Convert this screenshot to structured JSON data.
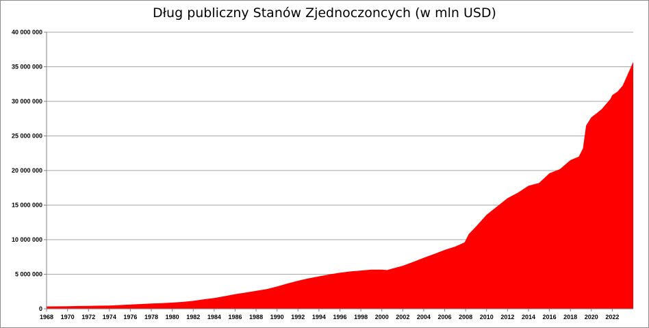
{
  "chart_data": {
    "type": "area",
    "title": "Dług publiczny Stanów Zjednoczoncych (w mln USD)",
    "xlabel": "",
    "ylabel": "",
    "xlim": [
      1968,
      2024
    ],
    "ylim": [
      0,
      40000000
    ],
    "grid": true,
    "legend": "none",
    "fill_color": "#ff0000",
    "grid_color": "#a6a6a6",
    "y_ticks": [
      0,
      5000000,
      10000000,
      15000000,
      20000000,
      25000000,
      30000000,
      35000000,
      40000000
    ],
    "y_tick_labels": [
      "0",
      "5 000 000",
      "10 000 000",
      "15 000 000",
      "20 000 000",
      "25 000 000",
      "30 000 000",
      "35 000 000",
      "40 000 000"
    ],
    "x_ticks": [
      1968,
      1970,
      1972,
      1974,
      1976,
      1978,
      1980,
      1982,
      1984,
      1986,
      1988,
      1990,
      1992,
      1994,
      1996,
      1998,
      2000,
      2002,
      2004,
      2006,
      2008,
      2010,
      2012,
      2014,
      2016,
      2018,
      2020,
      2022
    ],
    "x_tick_labels": [
      "1968",
      "1970",
      "1972",
      "1974",
      "1976",
      "1978",
      "1980",
      "1982",
      "1984",
      "1986",
      "1988",
      "1990",
      "1992",
      "1994",
      "1996",
      "1998",
      "2000",
      "2002",
      "2004",
      "2006",
      "2008",
      "2010",
      "2012",
      "2014",
      "2016",
      "2018",
      "2020",
      "2022"
    ],
    "x": [
      1968,
      1969,
      1970,
      1971,
      1972,
      1973,
      1974,
      1975,
      1976,
      1977,
      1978,
      1979,
      1980,
      1981,
      1982,
      1983,
      1984,
      1985,
      1986,
      1987,
      1988,
      1989,
      1990,
      1991,
      1992,
      1993,
      1994,
      1995,
      1996,
      1997,
      1998,
      1999,
      2000,
      2000.5,
      2001,
      2002,
      2003,
      2004,
      2005,
      2006,
      2007,
      2007.9,
      2008.3,
      2009,
      2010,
      2011,
      2012,
      2013,
      2014,
      2015,
      2016,
      2017,
      2018,
      2018.8,
      2019.2,
      2019.5,
      2020,
      2020.6,
      2021,
      2021.8,
      2022,
      2022.5,
      2023,
      2023.5,
      2024
    ],
    "values": [
      350000,
      360000,
      380000,
      410000,
      430000,
      460000,
      480000,
      540000,
      620000,
      690000,
      760000,
      820000,
      900000,
      1000000,
      1150000,
      1380000,
      1560000,
      1830000,
      2120000,
      2350000,
      2600000,
      2850000,
      3230000,
      3660000,
      4060000,
      4410000,
      4690000,
      4970000,
      5220000,
      5410000,
      5530000,
      5660000,
      5670000,
      5600000,
      5810000,
      6230000,
      6780000,
      7380000,
      7930000,
      8510000,
      9000000,
      9600000,
      10800000,
      11900000,
      13600000,
      14800000,
      16000000,
      16800000,
      17800000,
      18200000,
      19600000,
      20200000,
      21500000,
      22000000,
      23200000,
      26500000,
      27700000,
      28400000,
      28900000,
      30300000,
      30900000,
      31400000,
      32300000,
      34000000,
      35700000
    ]
  }
}
